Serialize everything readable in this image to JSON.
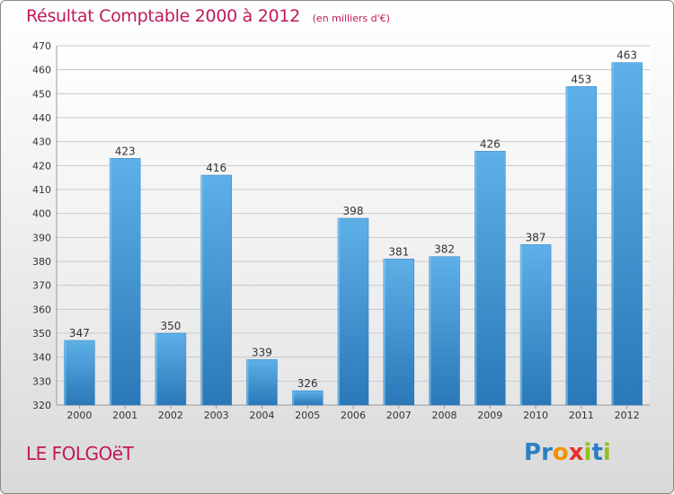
{
  "chart_data": {
    "type": "bar",
    "title": "Résultat Comptable 2000 à 2012",
    "subtitle": "(en milliers d'€)",
    "categories": [
      "2000",
      "2001",
      "2002",
      "2003",
      "2004",
      "2005",
      "2006",
      "2007",
      "2008",
      "2009",
      "2010",
      "2011",
      "2012"
    ],
    "values": [
      347,
      423,
      350,
      416,
      339,
      326,
      398,
      381,
      382,
      426,
      387,
      453,
      463
    ],
    "ylim": [
      320,
      470
    ],
    "yticks": [
      320,
      330,
      340,
      350,
      360,
      370,
      380,
      390,
      400,
      410,
      420,
      430,
      440,
      450,
      460,
      470
    ],
    "xlabel": "",
    "ylabel": "",
    "grid": true,
    "bar_color_top": "#5eb0e8",
    "bar_color_bottom": "#2a78b8"
  },
  "footer": {
    "town": "LE FOLGOëT",
    "logo_letters": [
      "P",
      "r",
      "o",
      "x",
      "i",
      "t",
      "i"
    ],
    "logo_colors": [
      "#2c7fc3",
      "#2c7fc3",
      "#f39200",
      "#e6332a",
      "#95c11f",
      "#2c7fc3",
      "#95c11f"
    ]
  },
  "colors": {
    "title": "#c2185b",
    "grid": "#c8c8c8",
    "axis_text": "#333333"
  }
}
